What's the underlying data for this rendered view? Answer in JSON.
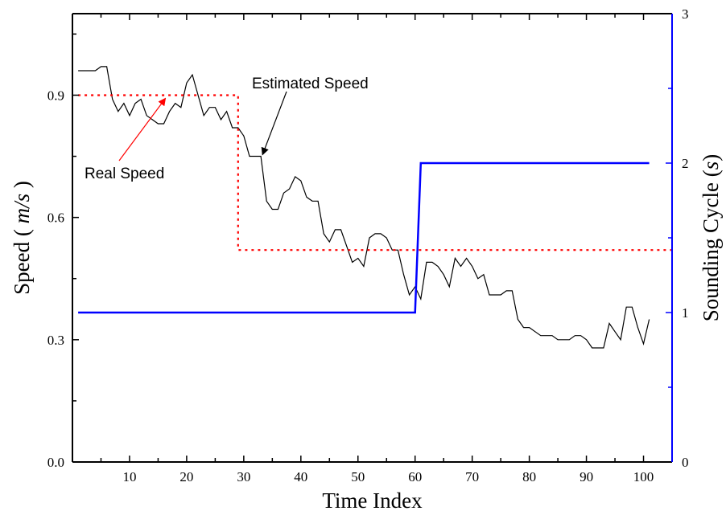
{
  "chart_data": {
    "type": "line",
    "xlabel": "Time Index",
    "ylabel_left": {
      "prefix": "Speed ( ",
      "unit": "m/s",
      "suffix": " )"
    },
    "ylabel_right": {
      "prefix": "Sounding Cycle (",
      "unit": "s",
      "suffix": ")"
    },
    "xlim": [
      0,
      105
    ],
    "ylim_left": [
      0.0,
      1.1
    ],
    "ylim_right": [
      0,
      3
    ],
    "x_ticks": [
      "10",
      "20",
      "30",
      "40",
      "50",
      "60",
      "70",
      "80",
      "90",
      "100"
    ],
    "y_left_ticks": [
      "0.0",
      "0.3",
      "0.6",
      "0.9"
    ],
    "y_right_ticks": [
      "0",
      "1",
      "2",
      "3"
    ],
    "colors": {
      "estimated": "#000000",
      "real": "#ff0000",
      "cycle": "#0000ff"
    },
    "series": [
      {
        "name": "Estimated Speed",
        "axis": "left",
        "style": "solid",
        "x": [
          1,
          2,
          3,
          4,
          5,
          6,
          7,
          8,
          9,
          10,
          11,
          12,
          13,
          14,
          15,
          16,
          17,
          18,
          19,
          20,
          21,
          22,
          23,
          24,
          25,
          26,
          27,
          28,
          29,
          30,
          31,
          32,
          33,
          34,
          35,
          36,
          37,
          38,
          39,
          40,
          41,
          42,
          43,
          44,
          45,
          46,
          47,
          48,
          49,
          50,
          51,
          52,
          53,
          54,
          55,
          56,
          57,
          58,
          59,
          60,
          61,
          62,
          63,
          64,
          65,
          66,
          67,
          68,
          69,
          70,
          71,
          72,
          73,
          74,
          75,
          76,
          77,
          78,
          79,
          80,
          81,
          82,
          83,
          84,
          85,
          86,
          87,
          88,
          89,
          90,
          91,
          92,
          93,
          94,
          95,
          96,
          97,
          98,
          99,
          100,
          101
        ],
        "y": [
          0.96,
          0.96,
          0.96,
          0.96,
          0.97,
          0.97,
          0.89,
          0.86,
          0.88,
          0.85,
          0.88,
          0.89,
          0.85,
          0.84,
          0.83,
          0.83,
          0.86,
          0.88,
          0.87,
          0.93,
          0.95,
          0.9,
          0.85,
          0.87,
          0.87,
          0.84,
          0.86,
          0.82,
          0.82,
          0.8,
          0.75,
          0.75,
          0.75,
          0.64,
          0.62,
          0.62,
          0.66,
          0.67,
          0.7,
          0.69,
          0.65,
          0.64,
          0.64,
          0.56,
          0.54,
          0.57,
          0.57,
          0.53,
          0.49,
          0.5,
          0.48,
          0.55,
          0.56,
          0.56,
          0.55,
          0.52,
          0.52,
          0.46,
          0.41,
          0.43,
          0.4,
          0.49,
          0.49,
          0.48,
          0.46,
          0.43,
          0.5,
          0.48,
          0.5,
          0.48,
          0.45,
          0.46,
          0.41,
          0.41,
          0.41,
          0.42,
          0.42,
          0.35,
          0.33,
          0.33,
          0.32,
          0.31,
          0.31,
          0.31,
          0.3,
          0.3,
          0.3,
          0.31,
          0.31,
          0.3,
          0.28,
          0.28,
          0.28,
          0.34,
          0.32,
          0.3,
          0.38,
          0.38,
          0.33,
          0.29,
          0.35
        ]
      },
      {
        "name": "Real Speed",
        "axis": "left",
        "style": "dotted",
        "x": [
          1,
          29,
          29,
          105
        ],
        "y": [
          0.9,
          0.9,
          0.52,
          0.52
        ]
      },
      {
        "name": "Sounding Cycle",
        "axis": "right",
        "style": "solid",
        "x": [
          1,
          60,
          61,
          101
        ],
        "y": [
          1,
          1,
          2,
          2
        ]
      }
    ],
    "annotations": [
      {
        "text": "Estimated Speed",
        "target_x": 33,
        "target_y": 0.75
      },
      {
        "text": "Real Speed",
        "target_x": 16,
        "target_y": 0.9
      }
    ]
  }
}
